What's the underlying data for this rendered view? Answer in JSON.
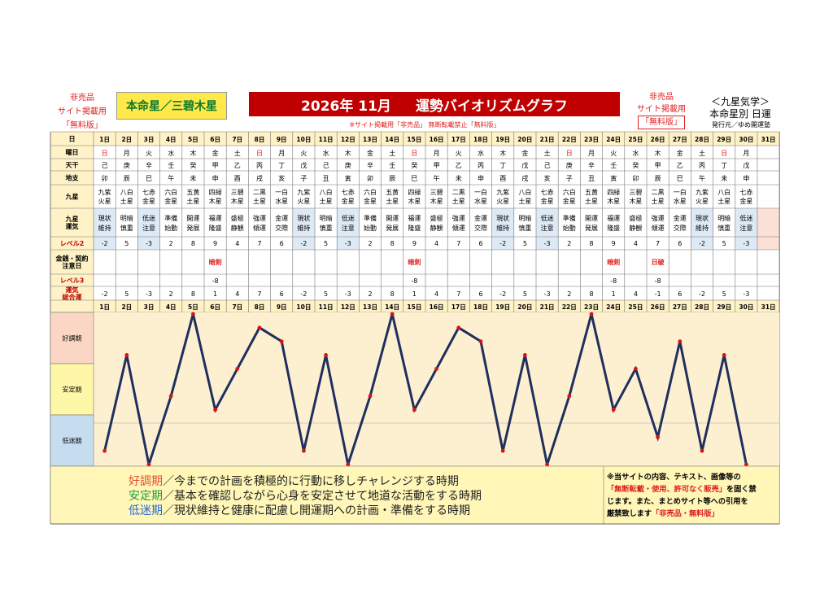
{
  "header": {
    "left_badge": [
      "非売品",
      "サイト掲載用",
      "「無料版」"
    ],
    "honmei": "本命星／三碧木星",
    "title_date": "2026年 11月",
    "title_main": "運勢バイオリズムグラフ",
    "notice": "※サイト掲載用「非売品」 無断転載禁止「無料版」",
    "right_badge_line1": "非売品",
    "right_badge_line2": "サイト掲載用",
    "right_badge_line3": "「無料版」",
    "kyusei_title": "＜九星気学＞",
    "kyusei_sub": "本命星別 日運",
    "publisher": "発行元／ゆめ開運塾"
  },
  "row_labels": {
    "day": "日",
    "weekday": "曜日",
    "tenkan": "天干",
    "chishi": "地支",
    "kyusei": "九星",
    "unki": [
      "九星",
      "運気"
    ],
    "level2": "レベル2",
    "kinsen": [
      "金銭・契約",
      "注意日"
    ],
    "level3": "レベル3",
    "total": [
      "運気",
      "総合運"
    ]
  },
  "columns": {
    "days": [
      "1日",
      "2日",
      "3日",
      "4日",
      "5日",
      "6日",
      "7日",
      "8日",
      "9日",
      "10日",
      "11日",
      "12日",
      "13日",
      "14日",
      "15日",
      "16日",
      "17日",
      "18日",
      "19日",
      "20日",
      "21日",
      "22日",
      "23日",
      "24日",
      "25日",
      "26日",
      "27日",
      "28日",
      "29日",
      "30日",
      "31日"
    ],
    "weekday": [
      "日",
      "月",
      "火",
      "水",
      "木",
      "金",
      "土",
      "日",
      "月",
      "火",
      "水",
      "木",
      "金",
      "土",
      "日",
      "月",
      "火",
      "水",
      "木",
      "金",
      "土",
      "日",
      "月",
      "火",
      "水",
      "木",
      "金",
      "土",
      "日",
      "月",
      ""
    ],
    "tenkan": [
      "己",
      "庚",
      "辛",
      "壬",
      "癸",
      "甲",
      "乙",
      "丙",
      "丁",
      "戊",
      "己",
      "庚",
      "辛",
      "壬",
      "癸",
      "甲",
      "乙",
      "丙",
      "丁",
      "戊",
      "己",
      "庚",
      "辛",
      "壬",
      "癸",
      "甲",
      "乙",
      "丙",
      "丁",
      "戊",
      ""
    ],
    "chishi": [
      "卯",
      "辰",
      "巳",
      "午",
      "未",
      "申",
      "酉",
      "戌",
      "亥",
      "子",
      "丑",
      "寅",
      "卯",
      "辰",
      "巳",
      "午",
      "未",
      "申",
      "酉",
      "戌",
      "亥",
      "子",
      "丑",
      "寅",
      "卯",
      "辰",
      "巳",
      "午",
      "未",
      "申",
      ""
    ],
    "kyusei": [
      [
        "九紫",
        "火星"
      ],
      [
        "八白",
        "土星"
      ],
      [
        "七赤",
        "金星"
      ],
      [
        "六白",
        "金星"
      ],
      [
        "五黄",
        "土星"
      ],
      [
        "四緑",
        "木星"
      ],
      [
        "三碧",
        "木星"
      ],
      [
        "二黒",
        "土星"
      ],
      [
        "一白",
        "水星"
      ],
      [
        "九紫",
        "火星"
      ],
      [
        "八白",
        "土星"
      ],
      [
        "七赤",
        "金星"
      ],
      [
        "六白",
        "金星"
      ],
      [
        "五黄",
        "土星"
      ],
      [
        "四緑",
        "木星"
      ],
      [
        "三碧",
        "木星"
      ],
      [
        "二黒",
        "土星"
      ],
      [
        "一白",
        "水星"
      ],
      [
        "九紫",
        "火星"
      ],
      [
        "八白",
        "土星"
      ],
      [
        "七赤",
        "金星"
      ],
      [
        "六白",
        "金星"
      ],
      [
        "五黄",
        "土星"
      ],
      [
        "四緑",
        "木星"
      ],
      [
        "三碧",
        "木星"
      ],
      [
        "二黒",
        "土星"
      ],
      [
        "一白",
        "水星"
      ],
      [
        "九紫",
        "火星"
      ],
      [
        "八白",
        "土星"
      ],
      [
        "七赤",
        "金星"
      ],
      [
        "",
        ""
      ]
    ],
    "unki": [
      [
        "現状",
        "維持"
      ],
      [
        "明暗",
        "慎重"
      ],
      [
        "低迷",
        "注意"
      ],
      [
        "準備",
        "始動"
      ],
      [
        "開運",
        "発展"
      ],
      [
        "福運",
        "隆盛"
      ],
      [
        "盛極",
        "静観"
      ],
      [
        "強運",
        "傾運"
      ],
      [
        "金運",
        "交際"
      ],
      [
        "現状",
        "維持"
      ],
      [
        "明暗",
        "慎重"
      ],
      [
        "低迷",
        "注意"
      ],
      [
        "準備",
        "始動"
      ],
      [
        "開運",
        "発展"
      ],
      [
        "福運",
        "隆盛"
      ],
      [
        "盛極",
        "静観"
      ],
      [
        "強運",
        "傾運"
      ],
      [
        "金運",
        "交際"
      ],
      [
        "現状",
        "維持"
      ],
      [
        "明暗",
        "慎重"
      ],
      [
        "低迷",
        "注意"
      ],
      [
        "準備",
        "始動"
      ],
      [
        "開運",
        "発展"
      ],
      [
        "福運",
        "隆盛"
      ],
      [
        "盛極",
        "静観"
      ],
      [
        "強運",
        "傾運"
      ],
      [
        "金運",
        "交際"
      ],
      [
        "現状",
        "維持"
      ],
      [
        "明暗",
        "慎重"
      ],
      [
        "低迷",
        "注意"
      ],
      [
        "",
        ""
      ]
    ],
    "level2": [
      "-2",
      "5",
      "-3",
      "2",
      "8",
      "9",
      "4",
      "7",
      "6",
      "-2",
      "5",
      "-3",
      "2",
      "8",
      "9",
      "4",
      "7",
      "6",
      "-2",
      "5",
      "-3",
      "2",
      "8",
      "9",
      "4",
      "7",
      "6",
      "-2",
      "5",
      "-3",
      ""
    ],
    "kinsen": [
      "",
      "",
      "",
      "",
      "",
      "暗剣",
      "",
      "",
      "",
      "",
      "",
      "",
      "",
      "",
      "暗剣",
      "",
      "",
      "",
      "",
      "",
      "",
      "",
      "",
      "暗剣",
      "",
      "日破",
      "",
      "",
      "",
      "",
      ""
    ],
    "level3": [
      "",
      "",
      "",
      "",
      "",
      "-8",
      "",
      "",
      "",
      "",
      "",
      "",
      "",
      "",
      "-8",
      "",
      "",
      "",
      "",
      "",
      "",
      "",
      "",
      "-8",
      "",
      "-8",
      "",
      "",
      "",
      "",
      ""
    ],
    "total": [
      "-2",
      "5",
      "-3",
      "2",
      "8",
      "1",
      "4",
      "7",
      "6",
      "-2",
      "5",
      "-3",
      "2",
      "8",
      "1",
      "4",
      "7",
      "6",
      "-2",
      "5",
      "-3",
      "2",
      "8",
      "1",
      "4",
      "-1",
      "6",
      "-2",
      "5",
      "-3",
      ""
    ]
  },
  "zones": {
    "good": "好調期",
    "stable": "安定期",
    "low": "低迷期"
  },
  "legend": {
    "good_name": "好調期",
    "good_text": "／今までの計画を積極的に行動に移しチャレンジする時期",
    "stable_name": "安定期",
    "stable_text": "／基本を確認しながら心身を安定させて地道な活動をする時期",
    "low_name": "低迷期",
    "low_text": "／現状維持と健康に配慮し開運期への計画・準備をする時期"
  },
  "disclaimer": {
    "line1": "※当サイトの内容、テキスト、画像等の",
    "line2_red": "「無断転載・使用、許可なく販売」",
    "line2_rest": "を固く禁",
    "line3": "じます。また、まとめサイト等への引用を",
    "line4": "厳禁致します",
    "line4_red": "「非売品・無料版」"
  },
  "colors": {
    "title_bg": "#c00000",
    "honmei_bg": "#ffe94a",
    "good_zone": "#fbd6c4",
    "stable_zone": "#fff7a8",
    "low_zone": "#c6dcef",
    "line": "#1f2f5e",
    "marker": "#e01010",
    "chart_bg": "#fdf0d0",
    "grid_head": "#fff2c6",
    "highlight_col": "#dde9f4",
    "sunday_red": "#e02020"
  },
  "chart_data": {
    "type": "line",
    "x": [
      1,
      2,
      3,
      4,
      5,
      6,
      7,
      8,
      9,
      10,
      11,
      12,
      13,
      14,
      15,
      16,
      17,
      18,
      19,
      20,
      21,
      22,
      23,
      24,
      25,
      26,
      27,
      28,
      29,
      30
    ],
    "values": [
      -2,
      5,
      -3,
      2,
      8,
      1,
      4,
      7,
      6,
      -2,
      5,
      -3,
      2,
      8,
      1,
      4,
      7,
      6,
      -2,
      5,
      -3,
      2,
      8,
      1,
      4,
      -1,
      6,
      -2,
      5,
      -3
    ],
    "ylim": [
      -3,
      8
    ],
    "xlabel": "",
    "ylabel": ""
  }
}
